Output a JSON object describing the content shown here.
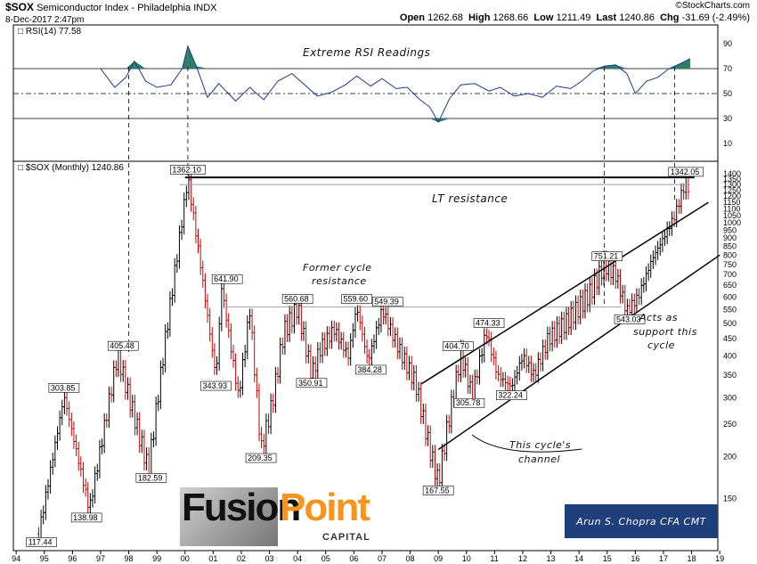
{
  "header": {
    "symbol": "$SOX",
    "name": "Semiconductor Index - Philadelphia",
    "exchange": "INDX",
    "date": "8-Dec-2017 2:47pm",
    "source": "©StockCharts.com",
    "open_label": "Open",
    "open": "1262.68",
    "high_label": "High",
    "high": "1268.66",
    "low_label": "Low",
    "low": "1211.49",
    "last_label": "Last",
    "last": "1240.86",
    "chg_label": "Chg",
    "chg": "-31.69 (-2.49%)"
  },
  "rsi_panel": {
    "label": "RSI(14) 77.58",
    "annotation": "Extreme RSI Readings"
  },
  "price_panel": {
    "label": "$SOX (Monthly) 1240.86"
  },
  "annotations": {
    "lt_resistance": "LT resistance",
    "former_cycle_1": "Former cycle",
    "former_cycle_2": "resistance",
    "channel_1": "This cycle's",
    "channel_2": "channel",
    "support_1": "Acts as",
    "support_2": "support this",
    "support_3": "cycle"
  },
  "branding": {
    "fusion": "Fusion",
    "point": "Point",
    "capital": "CAPITAL",
    "author": "Arun S. Chopra CFA CMT"
  },
  "colors": {
    "up": "#000000",
    "down": "#cc0000",
    "rsi_line": "#1a3a8a",
    "rsi_fill": "#2e7d6b",
    "accent": "#f7941d"
  },
  "chart_data": [
    {
      "type": "line",
      "name": "RSI(14)",
      "ylim": [
        0,
        100
      ],
      "y_ticks": [
        10,
        30,
        50,
        70,
        90
      ],
      "reference_lines": [
        30,
        50,
        70
      ],
      "x": [
        1997.0,
        1997.5,
        1997.9,
        1998.2,
        1998.6,
        1999.0,
        1999.5,
        1999.9,
        2000.1,
        2000.4,
        2000.8,
        2001.2,
        2001.8,
        2002.3,
        2002.8,
        2003.3,
        2003.8,
        2004.2,
        2004.7,
        2005.2,
        2005.7,
        2006.1,
        2006.6,
        2007.0,
        2007.5,
        2007.9,
        2008.3,
        2008.7,
        2009.0,
        2009.4,
        2009.8,
        2010.3,
        2010.8,
        2011.2,
        2011.7,
        2012.2,
        2012.7,
        2013.2,
        2013.7,
        2014.1,
        2014.5,
        2014.9,
        2015.3,
        2015.7,
        2016.0,
        2016.4,
        2016.8,
        2017.2,
        2017.6,
        2017.95
      ],
      "values": [
        70,
        55,
        63,
        76,
        60,
        55,
        57,
        70,
        88,
        72,
        47,
        58,
        44,
        55,
        45,
        60,
        66,
        58,
        48,
        51,
        57,
        64,
        56,
        62,
        54,
        55,
        46,
        39,
        27,
        46,
        57,
        58,
        52,
        55,
        48,
        50,
        47,
        56,
        54,
        60,
        68,
        72,
        73,
        66,
        50,
        60,
        63,
        70,
        74,
        78
      ]
    },
    {
      "type": "line",
      "name": "$SOX (Monthly)",
      "scale": "log",
      "y_ticks": [
        150,
        200,
        250,
        300,
        350,
        400,
        450,
        500,
        550,
        600,
        650,
        700,
        750,
        800,
        850,
        900,
        950,
        1000,
        1050,
        1100,
        1150,
        1200,
        1250,
        1300,
        1350,
        1400
      ],
      "x_ticks": [
        "94",
        "95",
        "96",
        "97",
        "98",
        "99",
        "00",
        "01",
        "02",
        "03",
        "04",
        "05",
        "06",
        "07",
        "08",
        "09",
        "10",
        "11",
        "12",
        "13",
        "14",
        "15",
        "16",
        "17",
        "18",
        "19"
      ],
      "x": [
        1994.8,
        1995.7,
        1996.6,
        1997.6,
        1998.7,
        1999.3,
        2000.1,
        2000.5,
        2001.1,
        2001.3,
        2001.9,
        2002.3,
        2002.7,
        2003.1,
        2003.5,
        2004.0,
        2004.5,
        2004.8,
        2005.3,
        2005.8,
        2006.1,
        2006.5,
        2007.0,
        2007.6,
        2008.2,
        2008.7,
        2009.0,
        2009.3,
        2009.8,
        2010.2,
        2010.7,
        2011.1,
        2011.6,
        2012.0,
        2012.4,
        2012.9,
        2013.5,
        2014.0,
        2014.4,
        2014.9,
        2015.3,
        2015.7,
        2016.1,
        2016.6,
        2017.0,
        2017.4,
        2017.8,
        2017.95
      ],
      "values": [
        117.44,
        303.85,
        138.98,
        405.48,
        182.59,
        450,
        1362.1,
        800,
        343.93,
        641.9,
        300,
        550,
        209.35,
        290,
        470,
        560.68,
        350.91,
        420,
        480,
        400,
        559.6,
        384.28,
        549.39,
        420,
        330,
        210,
        167.55,
        240,
        404.7,
        305.78,
        474.33,
        350,
        322.24,
        400,
        350,
        450,
        500,
        560,
        620,
        751.21,
        700,
        543.03,
        600,
        780,
        900,
        1050,
        1342.05,
        1240.86
      ],
      "labels": [
        "117.44",
        "138.98",
        "182.59",
        "209.35",
        "167.55",
        "303.85",
        "405.48",
        "1362.10",
        "343.93",
        "641.90",
        "560.68",
        "350.91",
        "559.60",
        "384.28",
        "549.39",
        "404.70",
        "305.78",
        "474.33",
        "322.24",
        "751.21",
        "543.03",
        "1342.05"
      ]
    }
  ]
}
